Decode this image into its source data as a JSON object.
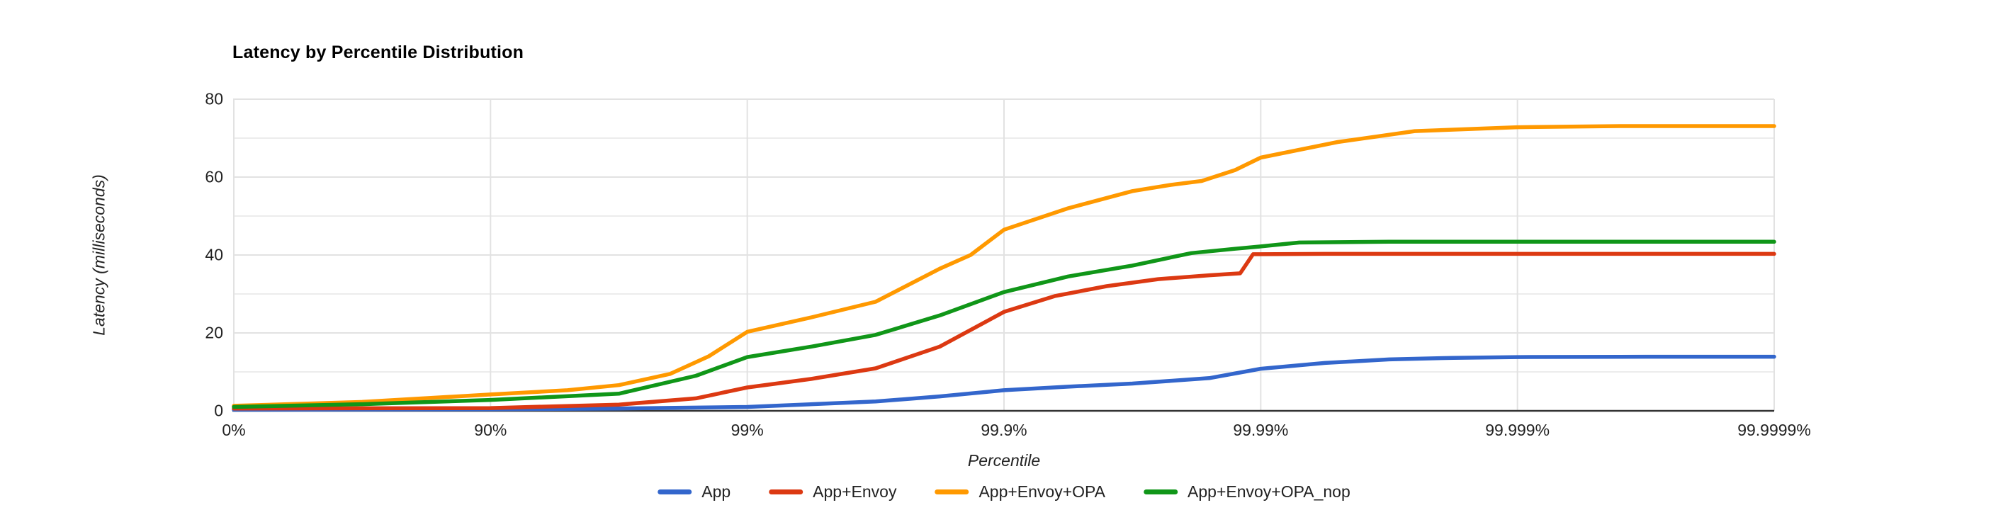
{
  "chart_data": {
    "type": "line",
    "title": "Latency by Percentile Distribution",
    "xlabel": "Percentile",
    "ylabel": "Latency (milliseconds)",
    "x_scale": "logarithmic percentile (equal spacing per decade of nines)",
    "x_tick_labels": [
      "0%",
      "90%",
      "99%",
      "99.9%",
      "99.99%",
      "99.999%",
      "99.9999%"
    ],
    "x_tick_nines": [
      0,
      1,
      2,
      3,
      4,
      5,
      6
    ],
    "y_tick_labels": [
      "0",
      "20",
      "40",
      "60",
      "80"
    ],
    "y_tick_values": [
      0,
      20,
      40,
      60,
      80
    ],
    "ylim": [
      0,
      80
    ],
    "grid": "horizontal gridlines every 10 ms; vertical gridline at each percentile decade",
    "legend_position": "bottom-center",
    "background": "#ffffff",
    "series": [
      {
        "name": "App",
        "color": "#3366CC",
        "points": [
          [
            0,
            0.3
          ],
          [
            0.5,
            0.35
          ],
          [
            1,
            0.4
          ],
          [
            1.5,
            0.6
          ],
          [
            2,
            1.0
          ],
          [
            2.5,
            2.4
          ],
          [
            2.75,
            3.7
          ],
          [
            3,
            5.3
          ],
          [
            3.25,
            6.2
          ],
          [
            3.5,
            7.0
          ],
          [
            3.8,
            8.4
          ],
          [
            4,
            10.8
          ],
          [
            4.25,
            12.3
          ],
          [
            4.5,
            13.2
          ],
          [
            4.75,
            13.6
          ],
          [
            5,
            13.8
          ],
          [
            5.5,
            13.9
          ],
          [
            6,
            13.9
          ]
        ]
      },
      {
        "name": "App+Envoy",
        "color": "#DC3912",
        "points": [
          [
            0,
            0.6
          ],
          [
            0.5,
            0.65
          ],
          [
            1,
            0.7
          ],
          [
            1.5,
            1.6
          ],
          [
            1.8,
            3.2
          ],
          [
            2,
            6.0
          ],
          [
            2.25,
            8.2
          ],
          [
            2.5,
            10.9
          ],
          [
            2.75,
            16.5
          ],
          [
            3,
            25.4
          ],
          [
            3.2,
            29.5
          ],
          [
            3.4,
            32.0
          ],
          [
            3.6,
            33.8
          ],
          [
            3.8,
            34.8
          ],
          [
            3.92,
            35.3
          ],
          [
            3.97,
            40.2
          ],
          [
            4.25,
            40.3
          ],
          [
            4.5,
            40.3
          ],
          [
            5,
            40.3
          ],
          [
            5.5,
            40.3
          ],
          [
            6,
            40.3
          ]
        ]
      },
      {
        "name": "App+Envoy+OPA",
        "color": "#FF9900",
        "points": [
          [
            0,
            1.3
          ],
          [
            0.5,
            2.3
          ],
          [
            1,
            4.2
          ],
          [
            1.3,
            5.3
          ],
          [
            1.5,
            6.6
          ],
          [
            1.7,
            9.5
          ],
          [
            1.85,
            14.0
          ],
          [
            2,
            20.3
          ],
          [
            2.25,
            24.0
          ],
          [
            2.5,
            28.0
          ],
          [
            2.75,
            36.5
          ],
          [
            2.87,
            40.0
          ],
          [
            3,
            46.5
          ],
          [
            3.25,
            52.0
          ],
          [
            3.5,
            56.4
          ],
          [
            3.65,
            58.0
          ],
          [
            3.77,
            59.0
          ],
          [
            3.9,
            61.8
          ],
          [
            4,
            65.0
          ],
          [
            4.3,
            69.0
          ],
          [
            4.6,
            71.8
          ],
          [
            5,
            72.8
          ],
          [
            5.4,
            73.1
          ],
          [
            6,
            73.1
          ]
        ]
      },
      {
        "name": "App+Envoy+OPA_nop",
        "color": "#109618",
        "points": [
          [
            0,
            1.0
          ],
          [
            0.5,
            1.7
          ],
          [
            1,
            2.8
          ],
          [
            1.5,
            4.4
          ],
          [
            1.8,
            9.0
          ],
          [
            2,
            13.8
          ],
          [
            2.25,
            16.5
          ],
          [
            2.5,
            19.5
          ],
          [
            2.75,
            24.5
          ],
          [
            3,
            30.5
          ],
          [
            3.25,
            34.5
          ],
          [
            3.5,
            37.3
          ],
          [
            3.73,
            40.5
          ],
          [
            3.9,
            41.6
          ],
          [
            4,
            42.2
          ],
          [
            4.15,
            43.2
          ],
          [
            4.5,
            43.4
          ],
          [
            5,
            43.4
          ],
          [
            5.5,
            43.4
          ],
          [
            6,
            43.4
          ]
        ]
      }
    ],
    "style": {
      "gridline_major": "#e2e2e2",
      "gridline_minor": "#ececec",
      "axis_line": "#333333",
      "line_width": 5.5
    }
  }
}
